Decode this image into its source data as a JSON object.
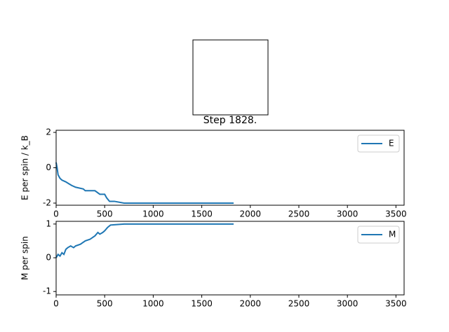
{
  "image": {
    "title": "Step 1828."
  },
  "chart_data": [
    {
      "type": "line",
      "ylabel": "E per spin / k_B",
      "x": [
        0,
        10,
        20,
        40,
        60,
        100,
        130,
        160,
        200,
        280,
        300,
        400,
        450,
        500,
        520,
        550,
        600,
        700,
        1000,
        1828
      ],
      "series": [
        {
          "name": "E",
          "color": "#1f77b4",
          "values": [
            0.3,
            0.0,
            -0.4,
            -0.6,
            -0.7,
            -0.8,
            -0.9,
            -1.0,
            -1.1,
            -1.2,
            -1.3,
            -1.3,
            -1.5,
            -1.5,
            -1.7,
            -1.9,
            -1.9,
            -2.0,
            -2.0,
            -2.0
          ]
        }
      ],
      "xlim": [
        0,
        3584
      ],
      "ylim": [
        -2.12,
        2.12
      ],
      "xticks": [
        0,
        500,
        1000,
        1500,
        2000,
        2500,
        3000,
        3500
      ],
      "yticks": [
        -2,
        0,
        2
      ],
      "legend": "upper right"
    },
    {
      "type": "line",
      "ylabel": "M per spin",
      "x": [
        0,
        20,
        40,
        60,
        80,
        100,
        120,
        150,
        180,
        200,
        250,
        300,
        350,
        400,
        430,
        450,
        480,
        500,
        530,
        560,
        600,
        700,
        1000,
        1828
      ],
      "series": [
        {
          "name": "M",
          "color": "#1f77b4",
          "values": [
            0,
            0.1,
            0.05,
            0.15,
            0.1,
            0.25,
            0.3,
            0.35,
            0.3,
            0.35,
            0.4,
            0.5,
            0.55,
            0.65,
            0.75,
            0.7,
            0.75,
            0.8,
            0.9,
            0.97,
            0.98,
            1.0,
            1.0,
            1.0
          ]
        }
      ],
      "xlim": [
        0,
        3584
      ],
      "ylim": [
        -1.1,
        1.08
      ],
      "xticks": [
        0,
        500,
        1000,
        1500,
        2000,
        2500,
        3000,
        3500
      ],
      "yticks": [
        -1,
        0,
        1
      ],
      "legend": "upper right"
    }
  ]
}
